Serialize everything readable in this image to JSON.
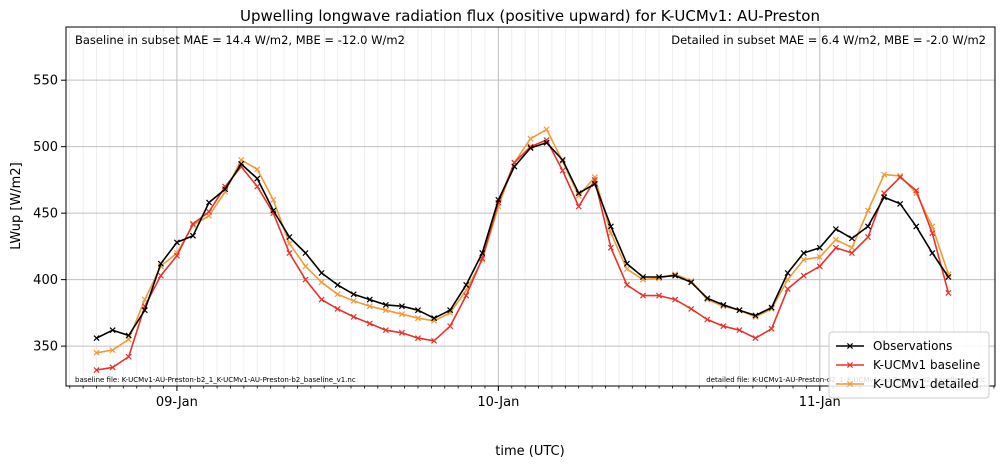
{
  "chart_data": {
    "type": "line",
    "title": "Upwelling longwave radiation flux (positive upward) for K-UCMv1: AU-Preston",
    "xlabel": "time (UTC)",
    "ylabel": "LWup [W/m2]",
    "xlim": [
      -0.345,
      2.545
    ],
    "ylim": [
      320,
      590
    ],
    "x_unit": "days after 09-Jan 00:00 UTC",
    "x_ticks": [
      {
        "value": 0,
        "label": "09-Jan"
      },
      {
        "value": 1,
        "label": "10-Jan"
      },
      {
        "value": 2,
        "label": "11-Jan"
      }
    ],
    "y_ticks": [
      350,
      400,
      450,
      500,
      550
    ],
    "grid": true,
    "legend_position": "bottom-right",
    "annotations": {
      "baseline_metrics": "Baseline in subset MAE = 14.4 W/m2, MBE = -12.0 W/m2",
      "detailed_metrics": "Detailed in subset MAE = 6.4 W/m2, MBE = -2.0 W/m2",
      "baseline_file": "baseline file: K-UCMv1-AU-Preston-b2_1_K-UCMv1-AU-Preston-b2_baseline_v1.nc",
      "detailed_file": "detailed file: K-UCMv1-AU-Preston-d2_1_K-UCMv1-AU-Preston-d2_baseline_v1.nc"
    },
    "series": [
      {
        "name": "Observations",
        "color": "#000000",
        "x": [
          -0.25,
          -0.2,
          -0.15,
          -0.1,
          -0.05,
          0,
          0.05,
          0.1,
          0.15,
          0.2,
          0.25,
          0.3,
          0.35,
          0.4,
          0.45,
          0.5,
          0.55,
          0.6,
          0.65,
          0.7,
          0.75,
          0.8,
          0.85,
          0.9,
          0.95,
          1,
          1.05,
          1.1,
          1.15,
          1.2,
          1.25,
          1.3,
          1.35,
          1.4,
          1.45,
          1.5,
          1.55,
          1.6,
          1.65,
          1.7,
          1.75,
          1.8,
          1.85,
          1.9,
          1.95,
          2,
          2.05,
          2.1,
          2.15,
          2.2,
          2.25,
          2.3,
          2.35,
          2.4
        ],
        "y": [
          356,
          362,
          358,
          377,
          412,
          428,
          433,
          458,
          468,
          487,
          476,
          452,
          432,
          420,
          405,
          396,
          389,
          385,
          381,
          380,
          377,
          371,
          377,
          396,
          420,
          460,
          485,
          499,
          503,
          490,
          465,
          472,
          440,
          412,
          402,
          402,
          403,
          398,
          386,
          381,
          377,
          373,
          379,
          405,
          420,
          424,
          438,
          431,
          440,
          462,
          457,
          440,
          420,
          402
        ]
      },
      {
        "name": "K-UCMv1 baseline",
        "color": "#e8322d",
        "x": [
          -0.25,
          -0.2,
          -0.15,
          -0.1,
          -0.05,
          0,
          0.05,
          0.1,
          0.15,
          0.2,
          0.25,
          0.3,
          0.35,
          0.4,
          0.45,
          0.5,
          0.55,
          0.6,
          0.65,
          0.7,
          0.75,
          0.8,
          0.85,
          0.9,
          0.95,
          1,
          1.05,
          1.1,
          1.15,
          1.2,
          1.25,
          1.3,
          1.35,
          1.4,
          1.45,
          1.5,
          1.55,
          1.6,
          1.65,
          1.7,
          1.75,
          1.8,
          1.85,
          1.9,
          1.95,
          2,
          2.05,
          2.1,
          2.15,
          2.2,
          2.25,
          2.3,
          2.35,
          2.4
        ],
        "y": [
          332,
          334,
          342,
          380,
          403,
          418,
          442,
          451,
          470,
          485,
          470,
          450,
          420,
          400,
          385,
          378,
          372,
          367,
          362,
          360,
          356,
          354,
          365,
          388,
          416,
          458,
          488,
          500,
          505,
          482,
          455,
          475,
          424,
          396,
          388,
          388,
          385,
          378,
          370,
          365,
          362,
          356,
          363,
          393,
          403,
          410,
          424,
          420,
          432,
          465,
          477,
          467,
          435,
          390
        ]
      },
      {
        "name": "K-UCMv1 detailed",
        "color": "#f29a38",
        "x": [
          -0.25,
          -0.2,
          -0.15,
          -0.1,
          -0.05,
          0,
          0.05,
          0.1,
          0.15,
          0.2,
          0.25,
          0.3,
          0.35,
          0.4,
          0.45,
          0.5,
          0.55,
          0.6,
          0.65,
          0.7,
          0.75,
          0.8,
          0.85,
          0.9,
          0.95,
          1,
          1.05,
          1.1,
          1.15,
          1.2,
          1.25,
          1.3,
          1.35,
          1.4,
          1.45,
          1.5,
          1.55,
          1.6,
          1.65,
          1.7,
          1.75,
          1.8,
          1.85,
          1.9,
          1.95,
          2,
          2.05,
          2.1,
          2.15,
          2.2,
          2.25,
          2.3,
          2.35,
          2.4
        ],
        "y": [
          345,
          347,
          355,
          385,
          410,
          420,
          441,
          448,
          466,
          490,
          483,
          460,
          427,
          410,
          398,
          389,
          384,
          380,
          377,
          374,
          371,
          369,
          375,
          392,
          415,
          455,
          488,
          506,
          513,
          489,
          463,
          477,
          435,
          408,
          400,
          401,
          404,
          399,
          385,
          380,
          377,
          372,
          378,
          400,
          415,
          417,
          430,
          424,
          452,
          479,
          478,
          465,
          440,
          404
        ]
      }
    ]
  }
}
